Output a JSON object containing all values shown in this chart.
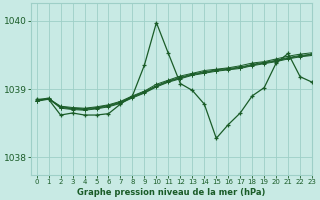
{
  "xlabel": "Graphe pression niveau de la mer (hPa)",
  "ylim": [
    1037.75,
    1040.25
  ],
  "xlim": [
    -0.5,
    23
  ],
  "yticks": [
    1038,
    1039,
    1040
  ],
  "xticks": [
    0,
    1,
    2,
    3,
    4,
    5,
    6,
    7,
    8,
    9,
    10,
    11,
    12,
    13,
    14,
    15,
    16,
    17,
    18,
    19,
    20,
    21,
    22,
    23
  ],
  "bg_color": "#c8eae4",
  "grid_color": "#9ecfc7",
  "line_color": "#1a5c28",
  "series_main": [
    1038.85,
    1038.85,
    1038.62,
    1038.65,
    1038.62,
    1038.62,
    1038.64,
    1038.78,
    1038.9,
    1039.35,
    1039.97,
    1039.52,
    1039.08,
    1038.98,
    1038.78,
    1038.28,
    1038.48,
    1038.65,
    1038.9,
    1039.02,
    1039.38,
    1039.52,
    1039.18,
    1039.1
  ],
  "series_linear1": [
    1038.83,
    1038.86,
    1038.75,
    1038.73,
    1038.72,
    1038.74,
    1038.77,
    1038.82,
    1038.9,
    1038.97,
    1039.07,
    1039.13,
    1039.19,
    1039.23,
    1039.27,
    1039.29,
    1039.31,
    1039.34,
    1039.38,
    1039.4,
    1039.44,
    1039.48,
    1039.51,
    1039.53
  ],
  "series_linear2": [
    1038.82,
    1038.85,
    1038.74,
    1038.72,
    1038.71,
    1038.73,
    1038.76,
    1038.81,
    1038.89,
    1038.96,
    1039.05,
    1039.12,
    1039.17,
    1039.22,
    1039.25,
    1039.28,
    1039.3,
    1039.32,
    1039.36,
    1039.39,
    1039.42,
    1039.46,
    1039.49,
    1039.51
  ],
  "series_linear3": [
    1038.84,
    1038.87,
    1038.73,
    1038.71,
    1038.7,
    1038.72,
    1038.75,
    1038.8,
    1038.88,
    1038.95,
    1039.04,
    1039.11,
    1039.16,
    1039.21,
    1039.24,
    1039.27,
    1039.29,
    1039.31,
    1039.35,
    1039.38,
    1039.41,
    1039.45,
    1039.48,
    1039.5
  ],
  "series_linear4": [
    1038.83,
    1038.86,
    1038.72,
    1038.7,
    1038.69,
    1038.71,
    1038.74,
    1038.79,
    1038.87,
    1038.94,
    1039.03,
    1039.1,
    1039.15,
    1039.2,
    1039.23,
    1039.26,
    1039.28,
    1039.3,
    1039.34,
    1039.37,
    1039.4,
    1039.44,
    1039.47,
    1039.49
  ]
}
